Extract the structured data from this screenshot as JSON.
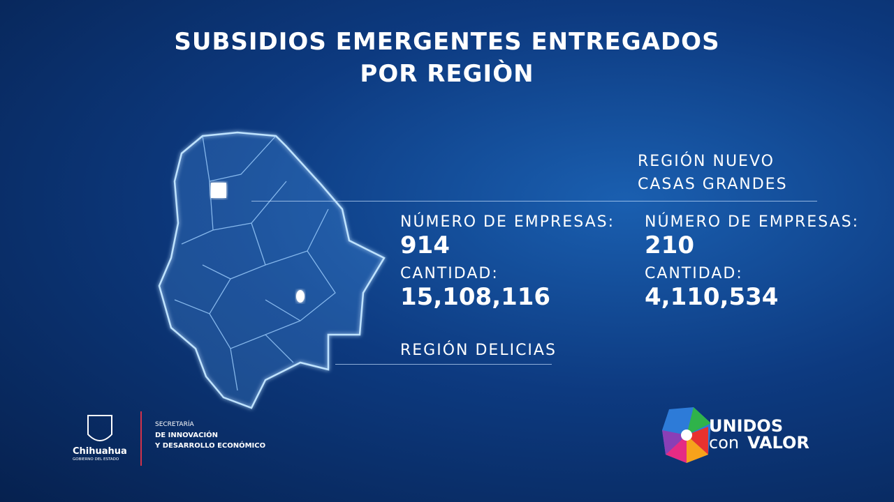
{
  "title": [
    "SUBSIDIOS EMERGENTES ENTREGADOS",
    "POR REGIÒN"
  ],
  "regions": [
    {
      "name": [
        "REGIÓN DELICIAS"
      ],
      "companies_label": "NÚMERO DE EMPRESAS:",
      "companies": "914",
      "amount_label": "CANTIDAD:",
      "amount": "15,108,116"
    },
    {
      "name": [
        "REGIÓN NUEVO",
        "CASAS GRANDES"
      ],
      "companies_label": "NÚMERO DE EMPRESAS:",
      "companies": "210",
      "amount_label": "CANTIDAD:",
      "amount": "4,110,534"
    }
  ],
  "footer": {
    "state": "Chihuahua",
    "state_sub": "GOBIERNO DEL ESTADO",
    "secretaria": [
      "SECRETARÍA",
      "DE INNOVACIÓN",
      "Y DESARROLLO ECONÓMICO"
    ],
    "brand": [
      "UNIDOS",
      "con",
      "VALOR"
    ]
  }
}
